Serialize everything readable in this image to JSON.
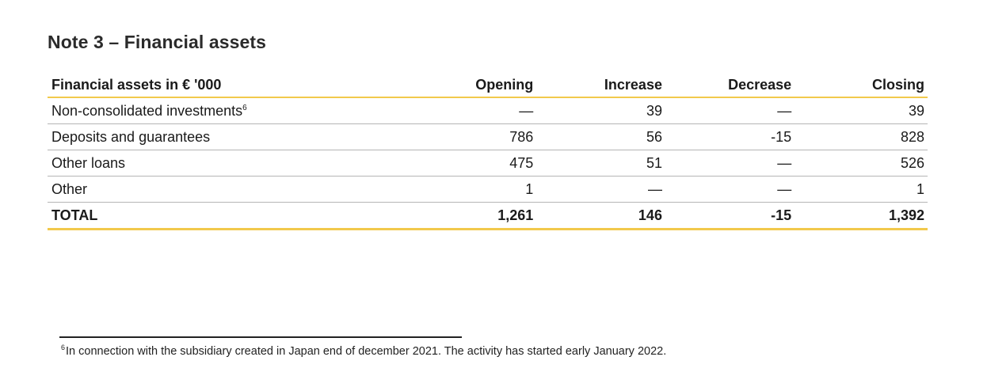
{
  "note": {
    "title": "Note 3 – Financial assets"
  },
  "table": {
    "headers": [
      "Financial assets in € '000",
      "Opening",
      "Increase",
      "Decrease",
      "Closing"
    ],
    "rows": [
      {
        "label": "Non-consolidated investments",
        "footnote_ref": "6",
        "opening": "—",
        "increase": "39",
        "decrease": "—",
        "closing": "39"
      },
      {
        "label": "Deposits and guarantees",
        "opening": "786",
        "increase": "56",
        "decrease": "-15",
        "closing": "828"
      },
      {
        "label": "Other loans",
        "opening": "475",
        "increase": "51",
        "decrease": "—",
        "closing": "526"
      },
      {
        "label": "Other",
        "opening": "1",
        "increase": "—",
        "decrease": "—",
        "closing": "1"
      }
    ],
    "total": {
      "label": "TOTAL",
      "opening": "1,261",
      "increase": "146",
      "decrease": "-15",
      "closing": "1,392"
    }
  },
  "footnote": {
    "mark": "6",
    "text": "In connection with the subsidiary created in Japan end of december 2021. The activity has started early January 2022."
  },
  "colors": {
    "accent_rule": "#f2c94c",
    "row_rule": "#b5b5b5"
  }
}
